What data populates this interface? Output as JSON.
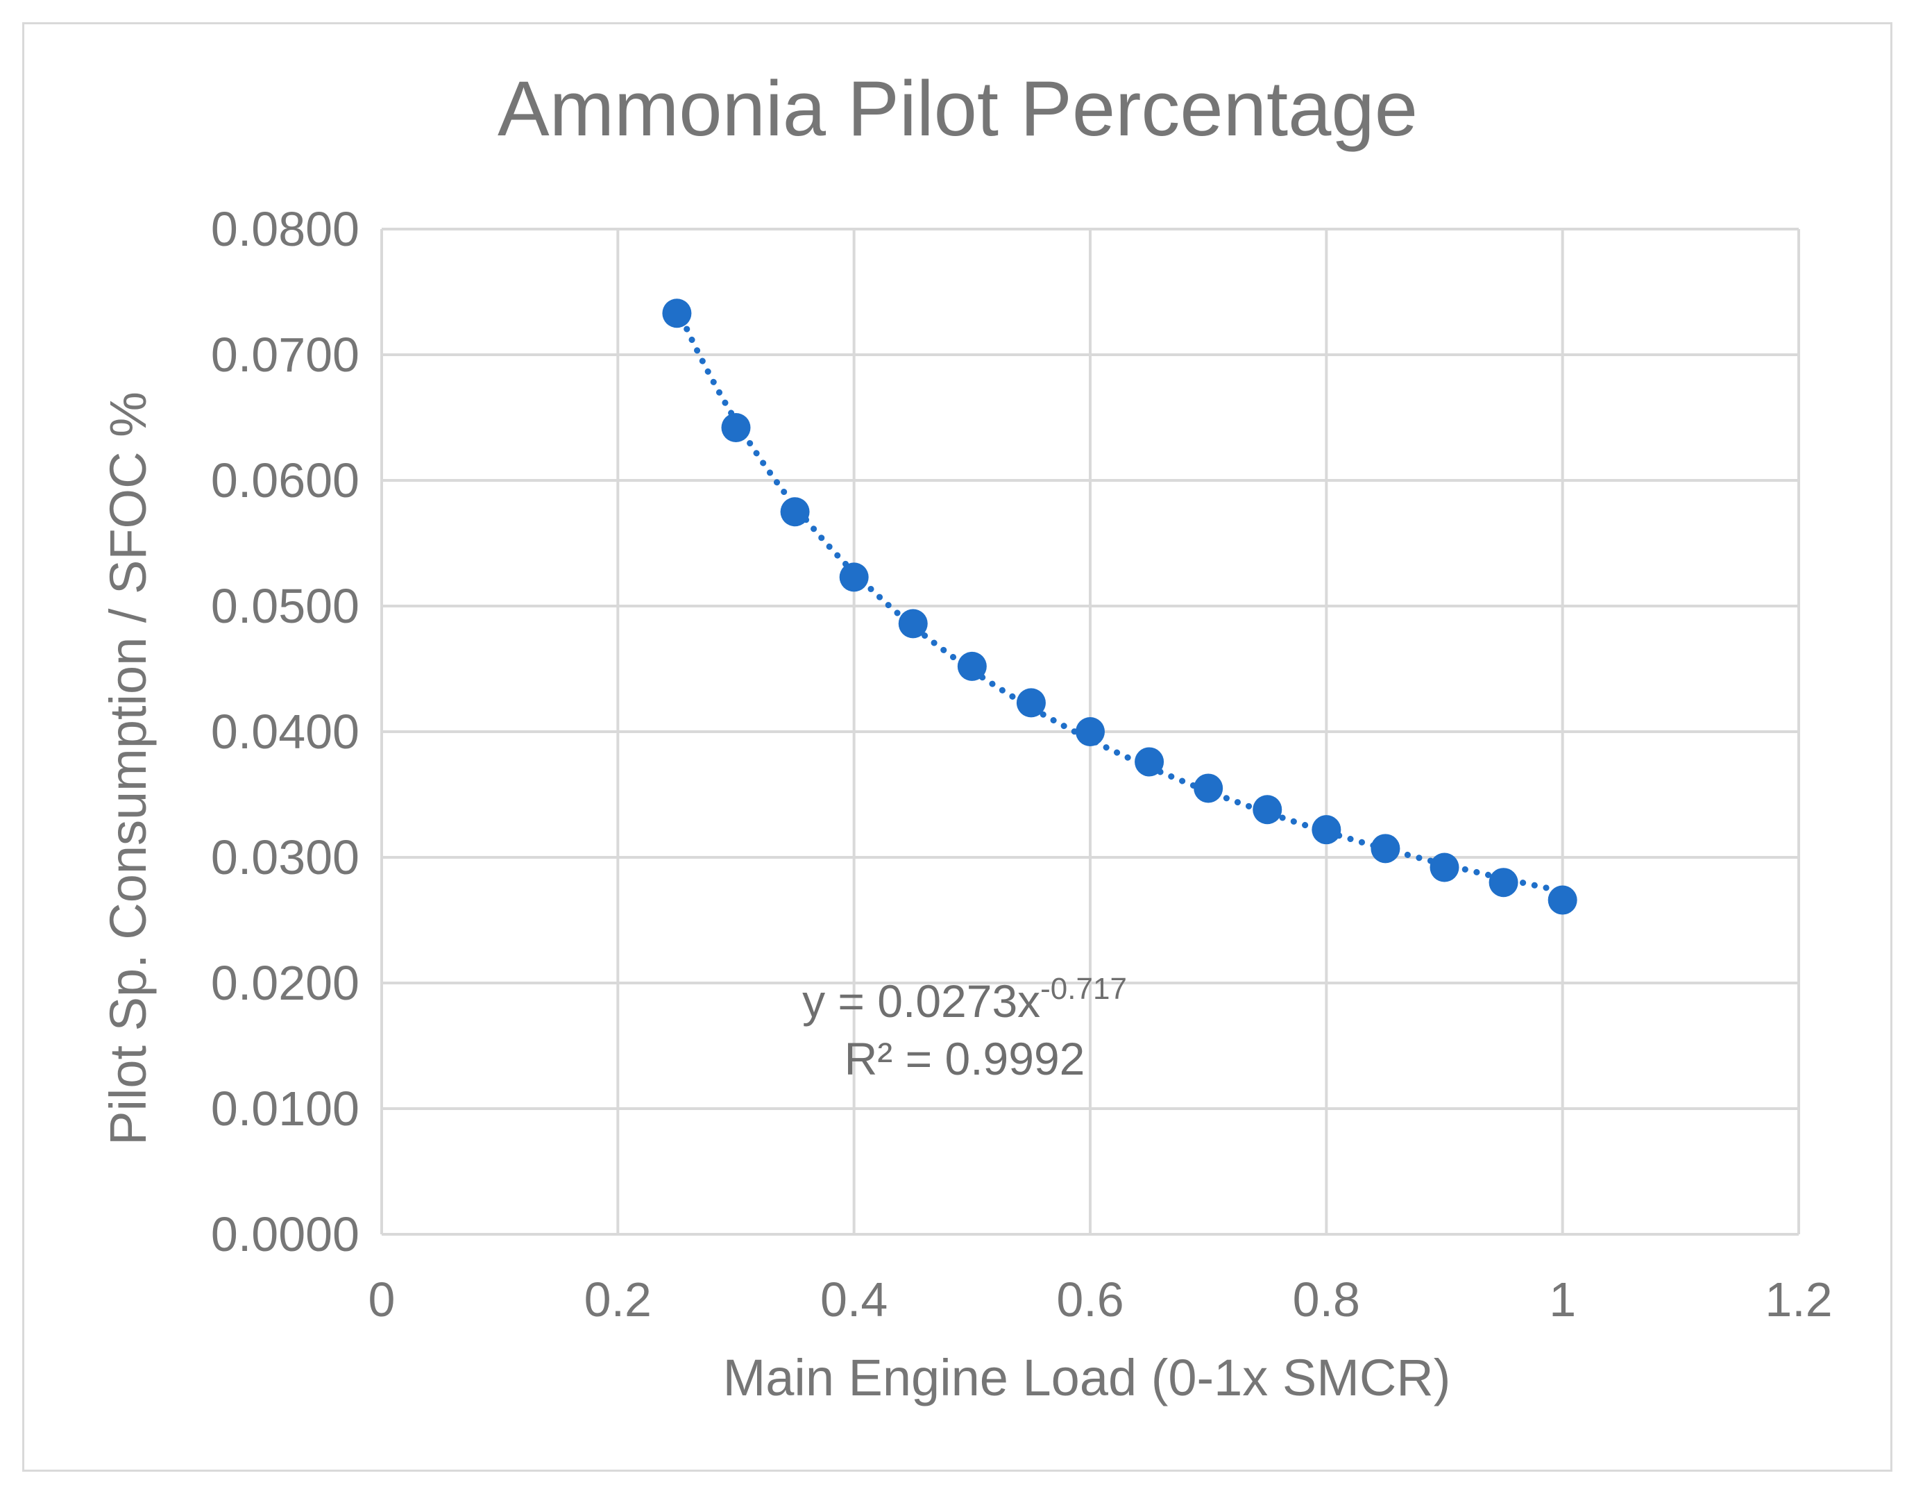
{
  "chart_data": {
    "type": "scatter",
    "title": "Ammonia Pilot Percentage",
    "xlabel": "Main Engine Load (0-1x SMCR)",
    "ylabel": "Pilot Sp. Consumption / SFOC %",
    "xlim": [
      0,
      1.2
    ],
    "ylim": [
      0,
      0.08
    ],
    "x_ticks": [
      "0",
      "0.2",
      "0.4",
      "0.6",
      "0.8",
      "1",
      "1.2"
    ],
    "y_ticks": [
      "0.0000",
      "0.0100",
      "0.0200",
      "0.0300",
      "0.0400",
      "0.0500",
      "0.0600",
      "0.0700",
      "0.0800"
    ],
    "grid": true,
    "series": [
      {
        "name": "Pilot Sp. Consumption / SFOC %",
        "x": [
          0.25,
          0.3,
          0.35,
          0.4,
          0.45,
          0.5,
          0.55,
          0.6,
          0.65,
          0.7,
          0.75,
          0.8,
          0.85,
          0.9,
          0.95,
          1.0
        ],
        "y": [
          0.0733,
          0.0642,
          0.0575,
          0.0523,
          0.0486,
          0.0452,
          0.0423,
          0.04,
          0.0376,
          0.0355,
          0.0338,
          0.0322,
          0.0307,
          0.0292,
          0.028,
          0.0266
        ],
        "color": "#1f6fc9"
      }
    ],
    "trendline": {
      "type": "power",
      "coefficient": 0.0273,
      "exponent": -0.717,
      "color": "#1f6fc9",
      "equation_base": "y = 0.0273x",
      "equation_exponent": "-0.717",
      "r_squared": "R² = 0.9992"
    }
  }
}
